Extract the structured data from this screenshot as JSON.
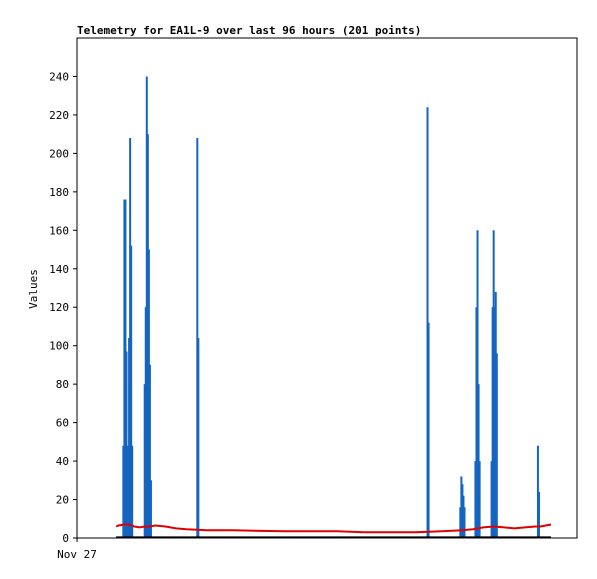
{
  "chart_data": {
    "type": "line",
    "title": "Telemetry for EA1L-9 over last 96 hours (201 points)",
    "xlabel": "",
    "ylabel": "Values",
    "x_tick_labels": [
      "Nov 27"
    ],
    "xlim": [
      0,
      96
    ],
    "ylim": [
      0,
      260
    ],
    "y_ticks": [
      0,
      20,
      40,
      60,
      80,
      100,
      120,
      140,
      160,
      180,
      200,
      220,
      240
    ],
    "grid": false,
    "legend": "none",
    "series": [
      {
        "color": "#1565c0",
        "style": "spikes",
        "points": [
          [
            8.9,
            48
          ],
          [
            9.1,
            176
          ],
          [
            9.3,
            176
          ],
          [
            9.5,
            97
          ],
          [
            9.7,
            48
          ],
          [
            10.0,
            104
          ],
          [
            10.2,
            208
          ],
          [
            10.4,
            152
          ],
          [
            10.6,
            48
          ],
          [
            13.0,
            80
          ],
          [
            13.2,
            120
          ],
          [
            13.4,
            240
          ],
          [
            13.6,
            210
          ],
          [
            13.8,
            150
          ],
          [
            14.0,
            90
          ],
          [
            14.2,
            30
          ],
          [
            23.1,
            208
          ],
          [
            23.3,
            104
          ],
          [
            67.3,
            224
          ],
          [
            67.5,
            112
          ],
          [
            73.6,
            16
          ],
          [
            73.8,
            32
          ],
          [
            74.0,
            28
          ],
          [
            74.2,
            22
          ],
          [
            74.4,
            16
          ],
          [
            76.5,
            40
          ],
          [
            76.7,
            120
          ],
          [
            76.9,
            160
          ],
          [
            77.1,
            80
          ],
          [
            77.3,
            40
          ],
          [
            79.6,
            40
          ],
          [
            79.8,
            120
          ],
          [
            80.0,
            160
          ],
          [
            80.2,
            120
          ],
          [
            80.4,
            128
          ],
          [
            80.6,
            96
          ],
          [
            88.5,
            48
          ],
          [
            88.7,
            24
          ]
        ]
      },
      {
        "color": "#e00000",
        "style": "line",
        "points": [
          [
            7.5,
            6
          ],
          [
            8,
            6.5
          ],
          [
            9,
            7
          ],
          [
            10,
            7
          ],
          [
            11,
            6
          ],
          [
            12,
            5.5
          ],
          [
            13,
            6
          ],
          [
            14,
            6
          ],
          [
            15,
            6.5
          ],
          [
            17,
            6
          ],
          [
            19,
            5
          ],
          [
            21,
            4.5
          ],
          [
            25,
            4
          ],
          [
            30,
            4
          ],
          [
            40,
            3.5
          ],
          [
            50,
            3.5
          ],
          [
            55,
            3
          ],
          [
            60,
            3
          ],
          [
            65,
            3
          ],
          [
            70,
            3.5
          ],
          [
            74,
            4
          ],
          [
            76,
            4.5
          ],
          [
            78,
            5.5
          ],
          [
            80,
            6
          ],
          [
            82,
            5.5
          ],
          [
            84,
            5
          ],
          [
            86,
            5.5
          ],
          [
            88,
            6
          ],
          [
            89,
            6
          ],
          [
            90,
            6.5
          ],
          [
            91,
            7
          ]
        ]
      },
      {
        "color": "#000000",
        "style": "line",
        "points": [
          [
            7.5,
            0.3
          ],
          [
            91,
            0.3
          ]
        ]
      }
    ]
  }
}
